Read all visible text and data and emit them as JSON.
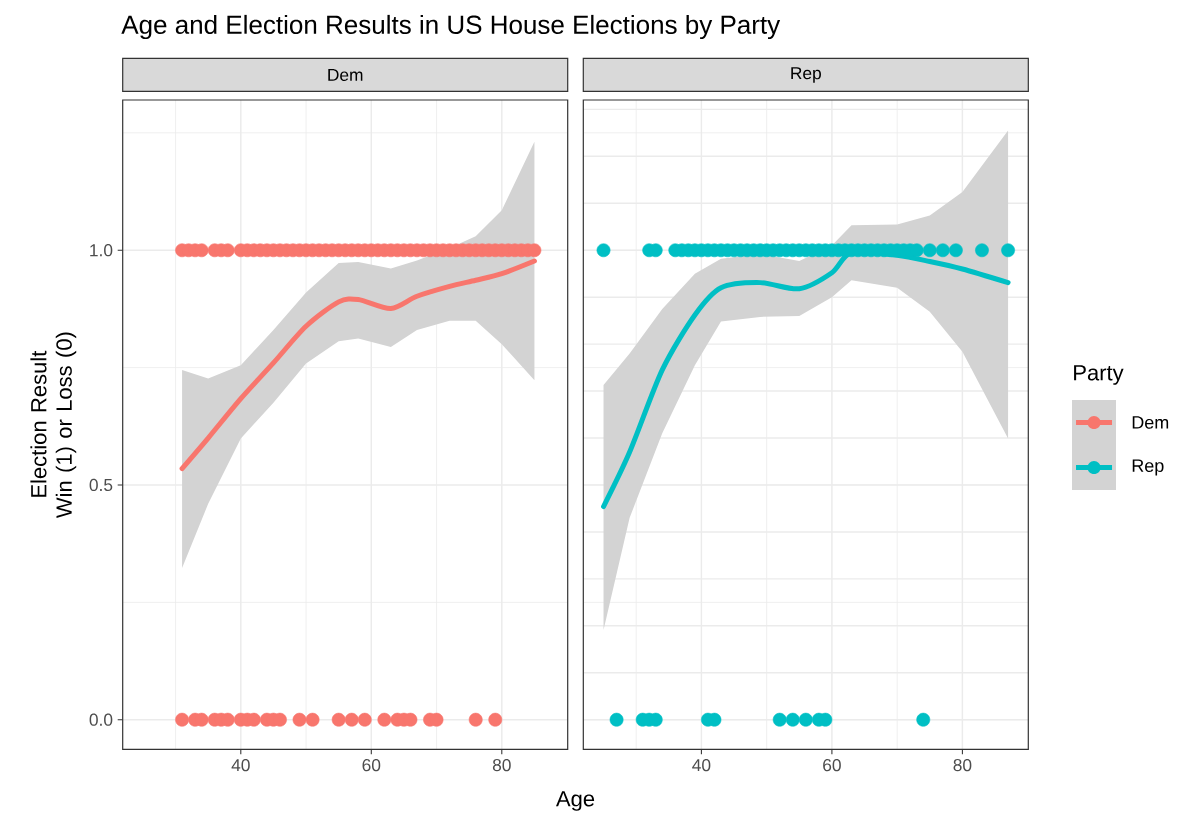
{
  "chart_data": [
    {
      "type": "scatter",
      "title": "Age and Election Results in US House Elections by Party",
      "subtitle": "Dem",
      "xlabel": "Age",
      "ylabel": "Election Result Win (1) or Loss (0)",
      "xlim": [
        21.9,
        90.1
      ],
      "ylim": [
        -0.063,
        1.32
      ],
      "xticks": [
        {
          "value": 30,
          "label": null
        },
        40,
        {
          "value": 50,
          "label": null
        },
        60,
        {
          "value": 70,
          "label": null
        },
        80
      ],
      "yticks": [
        {
          "value": 0,
          "label": "0.0"
        },
        {
          "value": 0.25,
          "label": null
        },
        {
          "value": 0.5,
          "label": "0.5"
        },
        {
          "value": 0.75,
          "label": null
        },
        {
          "value": 1,
          "label": "1.0"
        },
        {
          "value": 1.25,
          "label": null
        }
      ],
      "grid": true,
      "marker": "circle",
      "series": [
        {
          "color": "#f8766d",
          "x": [
            31,
            32,
            33,
            34,
            36,
            37,
            38,
            40,
            41,
            42,
            43,
            44,
            45,
            46,
            47,
            48,
            49,
            50,
            51,
            52,
            53,
            54,
            55,
            56,
            57,
            58,
            59,
            60,
            61,
            62,
            63,
            64,
            65,
            66,
            67,
            68,
            69,
            70,
            71,
            72,
            73,
            74,
            75,
            76,
            77,
            78,
            79,
            80,
            81,
            82,
            83,
            84,
            85
          ],
          "values": [
            1,
            1,
            1,
            1,
            1,
            1,
            1,
            1,
            1,
            1,
            1,
            1,
            1,
            1,
            1,
            1,
            1,
            1,
            1,
            1,
            1,
            1,
            1,
            1,
            1,
            1,
            1,
            1,
            1,
            1,
            1,
            1,
            1,
            1,
            1,
            1,
            1,
            1,
            1,
            1,
            1,
            1,
            1,
            1,
            1,
            1,
            1,
            1,
            1,
            1,
            1,
            1,
            1
          ]
        },
        {
          "color": "#f8766d",
          "x": [
            31,
            33,
            34,
            36,
            37,
            38,
            40,
            41,
            42,
            44,
            45,
            46,
            49,
            51,
            55,
            57,
            59,
            62,
            64,
            65,
            66,
            69,
            70,
            76,
            79
          ],
          "values": [
            0,
            0,
            0,
            0,
            0,
            0,
            0,
            0,
            0,
            0,
            0,
            0,
            0,
            0,
            0,
            0,
            0,
            0,
            0,
            0,
            0,
            0,
            0,
            0,
            0
          ]
        },
        {
          "type": "line",
          "name": "Dem",
          "color": "#f8766d",
          "marker": "none",
          "x": [
            31,
            35,
            40,
            45,
            50,
            55,
            58,
            63,
            67,
            72,
            76,
            80,
            85
          ],
          "values": [
            0.535,
            0.6,
            0.684,
            0.76,
            0.838,
            0.89,
            0.895,
            0.876,
            0.902,
            0.923,
            0.936,
            0.95,
            0.977
          ],
          "lower": [
            0.323,
            0.46,
            0.599,
            0.675,
            0.759,
            0.806,
            0.812,
            0.794,
            0.83,
            0.85,
            0.85,
            0.8,
            0.723
          ],
          "upper": [
            0.745,
            0.727,
            0.755,
            0.83,
            0.91,
            0.973,
            0.975,
            0.961,
            0.978,
            1.005,
            1.03,
            1.085,
            1.231
          ]
        }
      ]
    },
    {
      "type": "scatter",
      "subtitle": "Rep",
      "legend": "right",
      "legend_title": "Party",
      "tick_labels": "x",
      "xlim": [
        21.9,
        90.1
      ],
      "ylim": [
        -0.063,
        1.32
      ],
      "xticks": [
        {
          "value": 30,
          "label": null
        },
        40,
        {
          "value": 50,
          "label": null
        },
        60,
        {
          "value": 70,
          "label": null
        },
        80
      ],
      "yticks": [
        {
          "value": 0,
          "label": null
        },
        {
          "value": 0.25,
          "label": null
        },
        {
          "value": 0.5,
          "label": null
        },
        {
          "value": 0.75,
          "label": null
        },
        {
          "value": 1,
          "label": null
        },
        {
          "value": 1.25,
          "label": null
        }
      ],
      "grid": true,
      "marker": "circle",
      "series": [
        {
          "color": "#00bfc4",
          "x": [
            25,
            32,
            33,
            36,
            37,
            38,
            39,
            40,
            41,
            42,
            43,
            44,
            45,
            46,
            47,
            48,
            49,
            50,
            51,
            52,
            53,
            54,
            55,
            56,
            57,
            58,
            59,
            60,
            61,
            62,
            63,
            64,
            65,
            66,
            67,
            68,
            69,
            70,
            71,
            72,
            73,
            75,
            77,
            79,
            83,
            87
          ],
          "values": [
            1,
            1,
            1,
            1,
            1,
            1,
            1,
            1,
            1,
            1,
            1,
            1,
            1,
            1,
            1,
            1,
            1,
            1,
            1,
            1,
            1,
            1,
            1,
            1,
            1,
            1,
            1,
            1,
            1,
            1,
            1,
            1,
            1,
            1,
            1,
            1,
            1,
            1,
            1,
            1,
            1,
            1,
            1,
            1,
            1,
            1
          ]
        },
        {
          "color": "#00bfc4",
          "x": [
            27,
            31,
            32,
            33,
            41,
            42,
            52,
            54,
            56,
            58,
            59,
            74
          ],
          "values": [
            0,
            0,
            0,
            0,
            0,
            0,
            0,
            0,
            0,
            0,
            0,
            0
          ]
        },
        {
          "type": "line",
          "name": "Rep",
          "color": "#00bfc4",
          "marker": "none",
          "x": [
            25,
            29,
            34,
            39,
            43,
            49,
            55,
            60,
            63,
            70,
            75,
            80,
            87
          ],
          "values": [
            0.454,
            0.57,
            0.745,
            0.862,
            0.92,
            0.931,
            0.918,
            0.952,
            0.995,
            0.989,
            0.976,
            0.96,
            0.931
          ],
          "lower": [
            0.191,
            0.43,
            0.61,
            0.755,
            0.848,
            0.858,
            0.86,
            0.9,
            0.936,
            0.92,
            0.869,
            0.784,
            0.599
          ],
          "upper": [
            0.713,
            0.78,
            0.875,
            0.95,
            0.982,
            0.992,
            0.977,
            1.01,
            1.053,
            1.055,
            1.074,
            1.124,
            1.255
          ]
        }
      ]
    }
  ]
}
